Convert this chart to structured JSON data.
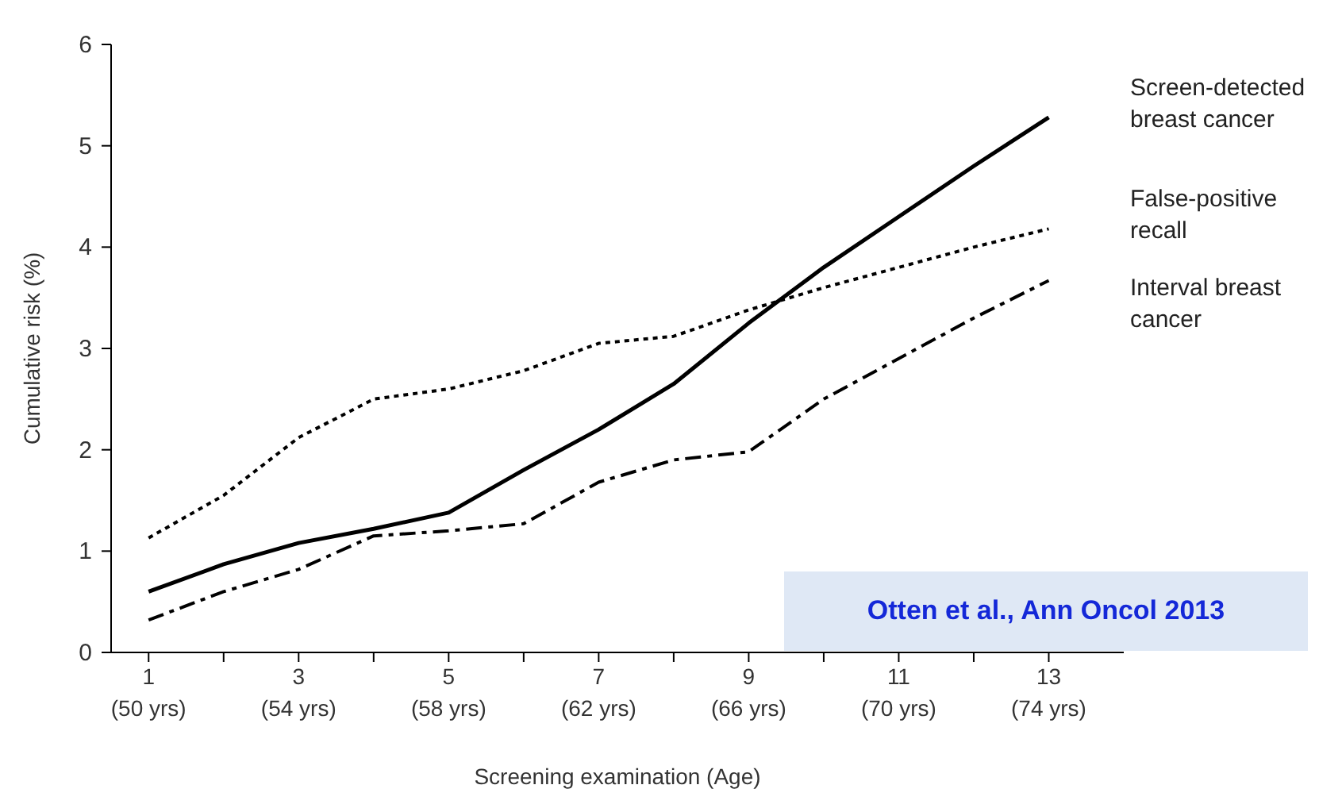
{
  "chart_data": {
    "type": "line",
    "xlabel": "Screening examination  (Age)",
    "ylabel": "Cumulative risk (%)",
    "categories": [
      "1\n(50 yrs)",
      null,
      "3\n(54 yrs)",
      null,
      "5\n(58 yrs)",
      null,
      "7\n(62 yrs)",
      null,
      "9\n(66 yrs)",
      null,
      "11\n(70 yrs)",
      null,
      "13\n(74 yrs)"
    ],
    "series": [
      {
        "name": "Screen-detected breast cancer",
        "color": "#000000",
        "line_style": "solid",
        "values": [
          0.6,
          0.87,
          1.08,
          1.22,
          1.38,
          1.8,
          2.2,
          2.65,
          3.25,
          3.8,
          4.3,
          4.8,
          5.28
        ]
      },
      {
        "name": "False-positive recall",
        "color": "#000000",
        "line_style": "dotted",
        "values": [
          1.13,
          1.55,
          2.12,
          2.5,
          2.6,
          2.78,
          3.05,
          3.12,
          3.38,
          3.6,
          3.8,
          4.0,
          4.18
        ]
      },
      {
        "name": "Interval breast cancer",
        "color": "#000000",
        "line_style": "dashed",
        "values": [
          0.32,
          0.6,
          0.82,
          1.15,
          1.2,
          1.27,
          1.68,
          1.9,
          1.98,
          2.5,
          2.9,
          3.3,
          3.67
        ]
      }
    ],
    "ylim": [
      0,
      6
    ],
    "yticks": [
      0,
      1,
      2,
      3,
      4,
      5,
      6
    ],
    "grid": false,
    "legend": false,
    "marker": "none",
    "annotations": [
      "Otten et al., Ann Oncol 2013"
    ]
  }
}
